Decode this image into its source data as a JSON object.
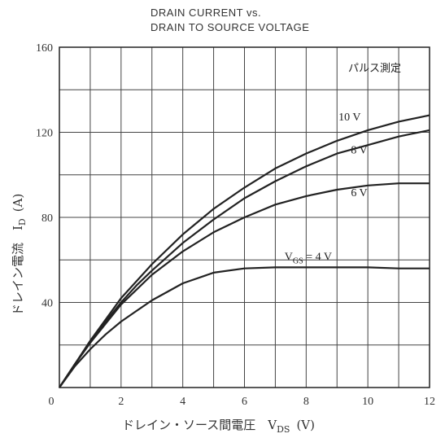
{
  "chart_data": {
    "type": "line",
    "title_lines": [
      "DRAIN CURRENT vs.",
      "DRAIN TO SOURCE VOLTAGE"
    ],
    "xlabel": "ドレイン・ソース間電圧　V",
    "xlabel_sub": "DS",
    "xlabel_unit": "(V)",
    "ylabel": "ドレイン電流　I",
    "ylabel_sub": "D",
    "ylabel_unit": "(A)",
    "xlim": [
      0,
      12
    ],
    "ylim": [
      0,
      160
    ],
    "x_ticks": [
      0,
      2,
      4,
      6,
      8,
      10,
      12
    ],
    "y_ticks": [
      40,
      80,
      120,
      160
    ],
    "x_grid_step": 1,
    "y_grid_step": 20,
    "grid": true,
    "annotation": "パルス測定",
    "series": [
      {
        "name": "10 V",
        "x": [
          0,
          0.5,
          1,
          1.5,
          2,
          2.5,
          3,
          4,
          5,
          6,
          7,
          8,
          9,
          10,
          11,
          12
        ],
        "y": [
          0,
          11,
          22,
          32,
          42,
          50,
          58,
          72,
          84,
          94,
          103,
          110,
          116,
          121,
          125,
          128
        ]
      },
      {
        "name": "8 V",
        "x": [
          0,
          0.5,
          1,
          1.5,
          2,
          2.5,
          3,
          4,
          5,
          6,
          7,
          8,
          9,
          10,
          11,
          12
        ],
        "y": [
          0,
          11,
          21,
          31,
          40,
          48,
          55,
          68,
          79,
          89,
          97,
          104,
          110,
          114,
          118,
          121
        ]
      },
      {
        "name": "6 V",
        "x": [
          0,
          0.5,
          1,
          1.5,
          2,
          2.5,
          3,
          4,
          5,
          6,
          7,
          8,
          9,
          10,
          11,
          12
        ],
        "y": [
          0,
          11,
          21,
          30,
          39,
          46,
          53,
          64,
          73,
          80,
          86,
          90,
          93,
          95,
          96,
          96
        ]
      },
      {
        "name": "4 V",
        "x": [
          0,
          0.5,
          1,
          1.5,
          2,
          2.5,
          3,
          4,
          5,
          6,
          7,
          8,
          9,
          10,
          11,
          12
        ],
        "y": [
          0,
          10,
          18,
          25,
          31,
          36,
          41,
          49,
          54,
          56,
          56.5,
          56.5,
          56.5,
          56.5,
          56,
          56
        ]
      }
    ],
    "series_labels": [
      "10 V",
      "8 V",
      "6 V"
    ],
    "label_4v": {
      "prefix": "V",
      "sub": "GS",
      "suffix": " = 4 V"
    }
  }
}
